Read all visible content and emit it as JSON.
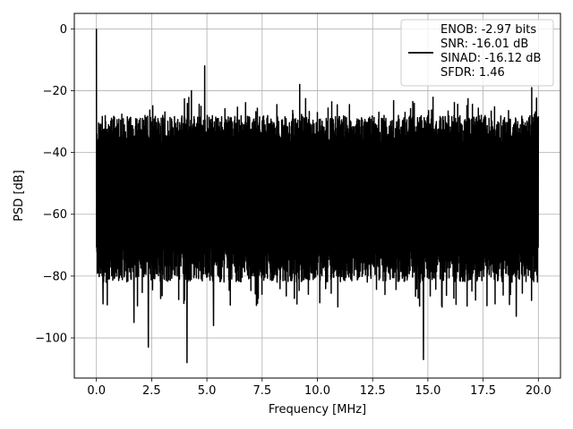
{
  "chart_data": {
    "type": "line",
    "title": "",
    "xlabel": "Frequency [MHz]",
    "ylabel": "PSD [dB]",
    "xlim": [
      -1.0,
      21.0
    ],
    "ylim": [
      -113,
      5
    ],
    "x_ticks": [
      0.0,
      2.5,
      5.0,
      7.5,
      10.0,
      12.5,
      15.0,
      17.5,
      20.0
    ],
    "x_tick_labels": [
      "0.0",
      "2.5",
      "5.0",
      "7.5",
      "10.0",
      "12.5",
      "15.0",
      "17.5",
      "20.0"
    ],
    "y_ticks": [
      0,
      -20,
      -40,
      -60,
      -80,
      -100
    ],
    "y_tick_labels": [
      "0",
      "−20",
      "−40",
      "−60",
      "−80",
      "−100"
    ],
    "grid": true,
    "legend": "top-right",
    "series": [
      {
        "name": "ENOB: -2.97 bits\nSNR: -16.01 dB\nSINAD: -16.12 dB\nSFDR: 1.46",
        "color": "#000000",
        "x_range": [
          0.0,
          20.0
        ],
        "floor_band_db": [
          -80,
          -30
        ],
        "peaks": [
          {
            "x": 0.0,
            "y": 0.0
          },
          {
            "x": 0.05,
            "y": -56
          },
          {
            "x": 0.3,
            "y": -89
          },
          {
            "x": 1.7,
            "y": -95
          },
          {
            "x": 2.35,
            "y": -103
          },
          {
            "x": 4.1,
            "y": -108
          },
          {
            "x": 4.9,
            "y": -12
          },
          {
            "x": 4.3,
            "y": -20
          },
          {
            "x": 5.3,
            "y": -96
          },
          {
            "x": 9.2,
            "y": -18
          },
          {
            "x": 14.8,
            "y": -107
          },
          {
            "x": 19.0,
            "y": -93
          },
          {
            "x": 19.7,
            "y": -19
          }
        ]
      }
    ]
  }
}
